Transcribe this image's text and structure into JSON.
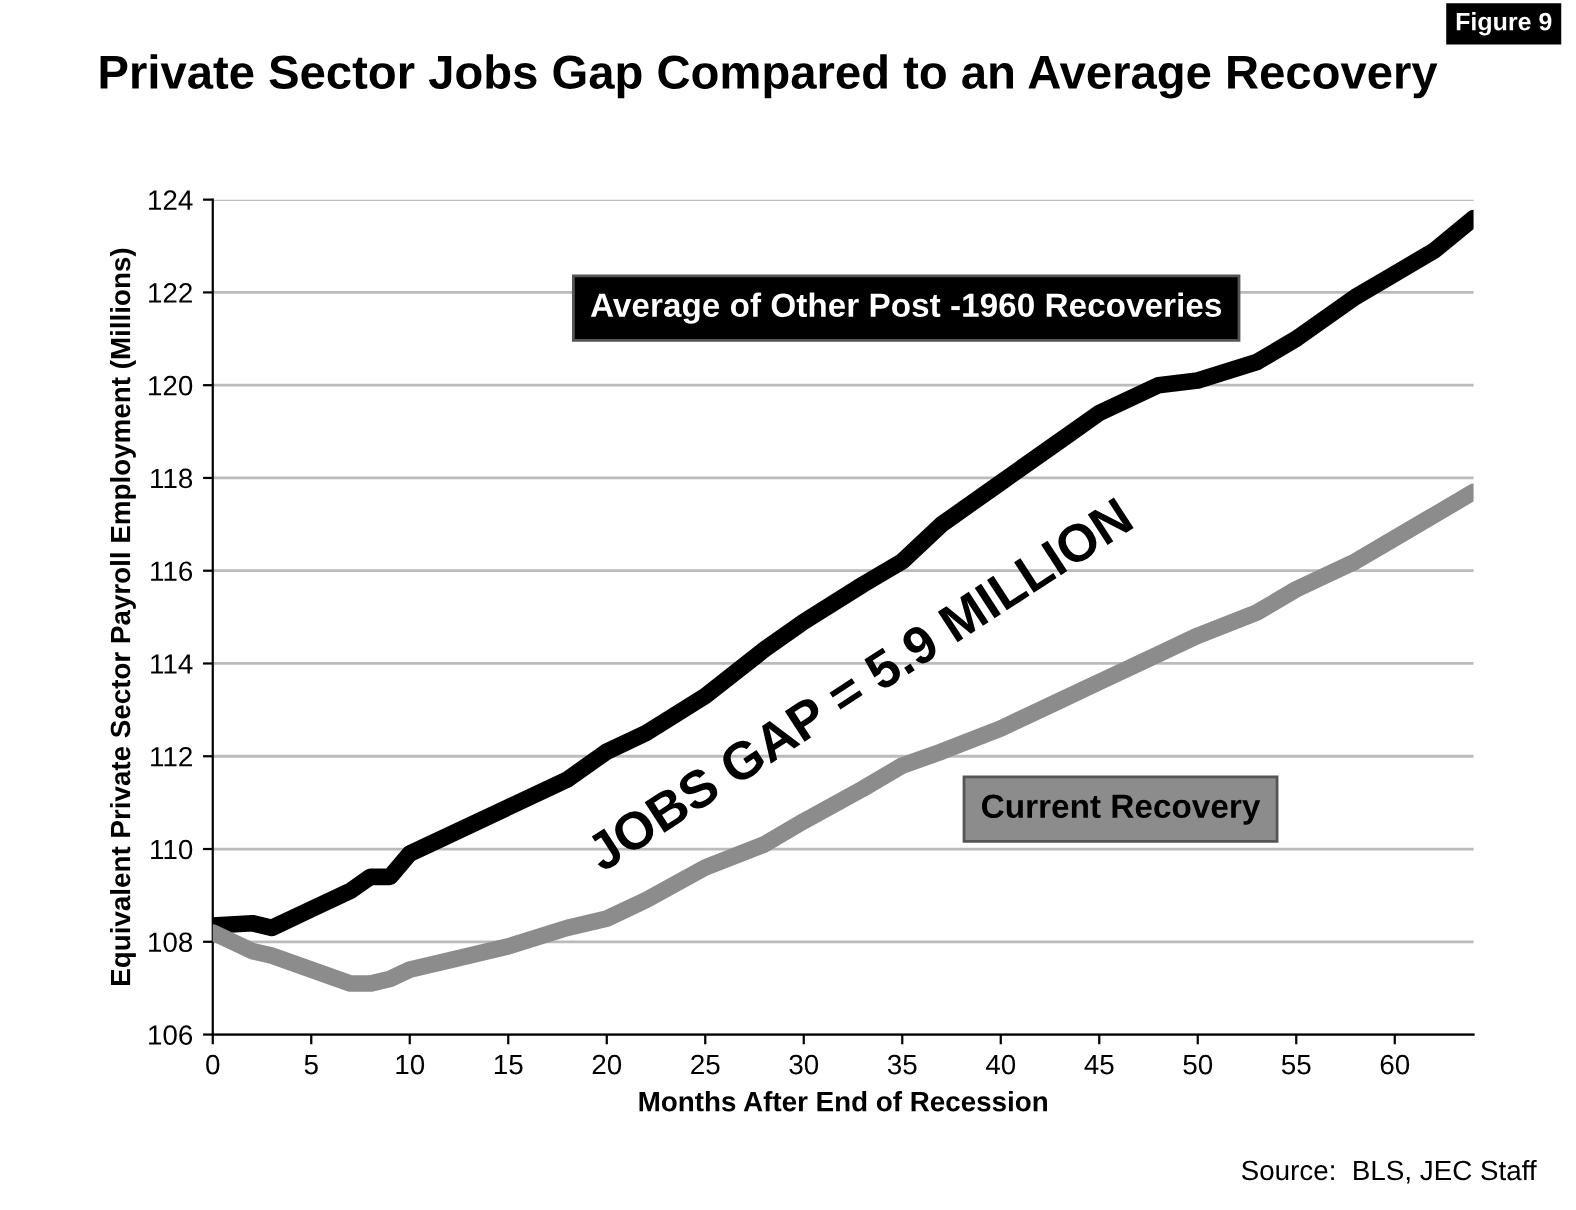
{
  "chart_data": {
    "type": "line",
    "title": "Private Sector Jobs Gap Compared to an Average Recovery",
    "xlabel": "Months After End of Recession",
    "ylabel": "Equivalent Private Sector Payroll Employment (Millions)",
    "annotations": [
      "Figure 9",
      "JOBS GAP = 5.9 MILLION",
      "Source:  BLS, JEC Staff"
    ],
    "x": [
      0,
      2,
      3,
      5,
      7,
      8,
      9,
      10,
      12,
      15,
      18,
      20,
      22,
      25,
      28,
      30,
      33,
      35,
      37,
      40,
      43,
      45,
      48,
      50,
      53,
      55,
      58,
      60,
      62,
      64
    ],
    "series": [
      {
        "name": "Average of Other Post -1960 Recoveries",
        "color": "#000000",
        "values": [
          108.35,
          108.4,
          108.3,
          108.7,
          109.1,
          109.4,
          109.4,
          109.9,
          110.3,
          110.9,
          111.5,
          112.1,
          112.5,
          113.3,
          114.3,
          114.9,
          115.7,
          116.2,
          117.0,
          117.9,
          118.8,
          119.4,
          120.0,
          120.1,
          120.5,
          121.0,
          121.9,
          122.4,
          122.9,
          123.6
        ]
      },
      {
        "name": "Current Recovery",
        "color": "#8c8c8c",
        "values": [
          108.2,
          107.8,
          107.7,
          107.4,
          107.1,
          107.1,
          107.2,
          107.4,
          107.6,
          107.9,
          108.3,
          108.5,
          108.9,
          109.6,
          110.1,
          110.6,
          111.3,
          111.8,
          112.1,
          112.6,
          113.2,
          113.6,
          114.2,
          114.6,
          115.1,
          115.6,
          116.2,
          116.7,
          117.2,
          117.7
        ]
      }
    ],
    "xlim": [
      0,
      64
    ],
    "xticks": [
      0,
      5,
      10,
      15,
      20,
      25,
      30,
      35,
      40,
      45,
      50,
      55,
      60
    ],
    "ylim": [
      106,
      124
    ],
    "yticks": [
      106,
      108,
      110,
      112,
      114,
      116,
      118,
      120,
      122,
      124
    ],
    "grid": "y",
    "legend": false,
    "marker": "none",
    "line_style": "solid"
  }
}
